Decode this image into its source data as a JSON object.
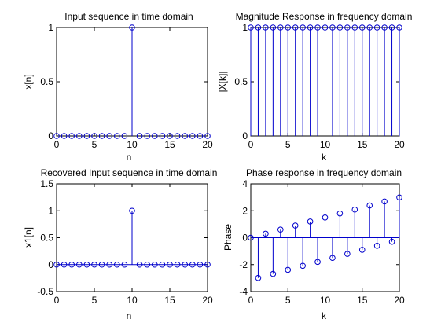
{
  "colors": {
    "stem": "#0000cc",
    "axes": "#000000",
    "background": "#ffffff"
  },
  "chart_data": [
    {
      "type": "stem",
      "title": "Input sequence in time domain",
      "xlabel": "n",
      "ylabel": "x[n]",
      "xlim": [
        0,
        20
      ],
      "ylim": [
        0,
        1
      ],
      "xticks": [
        0,
        5,
        10,
        15,
        20
      ],
      "yticks": [
        0,
        0.5,
        1
      ],
      "grid": false,
      "x": [
        0,
        1,
        2,
        3,
        4,
        5,
        6,
        7,
        8,
        9,
        10,
        11,
        12,
        13,
        14,
        15,
        16,
        17,
        18,
        19,
        20
      ],
      "values": [
        0,
        0,
        0,
        0,
        0,
        0,
        0,
        0,
        0,
        0,
        1,
        0,
        0,
        0,
        0,
        0,
        0,
        0,
        0,
        0,
        0
      ]
    },
    {
      "type": "stem",
      "title": "Magnitude Response in frequency domain",
      "xlabel": "k",
      "ylabel": "|X[k]|",
      "xlim": [
        0,
        20
      ],
      "ylim": [
        0,
        1
      ],
      "xticks": [
        0,
        5,
        10,
        15,
        20
      ],
      "yticks": [
        0,
        0.5,
        1
      ],
      "grid": false,
      "x": [
        0,
        1,
        2,
        3,
        4,
        5,
        6,
        7,
        8,
        9,
        10,
        11,
        12,
        13,
        14,
        15,
        16,
        17,
        18,
        19,
        20
      ],
      "values": [
        1,
        1,
        1,
        1,
        1,
        1,
        1,
        1,
        1,
        1,
        1,
        1,
        1,
        1,
        1,
        1,
        1,
        1,
        1,
        1,
        1
      ]
    },
    {
      "type": "stem",
      "title": "Recovered Input sequence in time domain",
      "xlabel": "n",
      "ylabel": "x1[n]",
      "xlim": [
        0,
        20
      ],
      "ylim": [
        -0.5,
        1.5
      ],
      "xticks": [
        0,
        5,
        10,
        15,
        20
      ],
      "yticks": [
        -0.5,
        0,
        0.5,
        1,
        1.5
      ],
      "grid": false,
      "x": [
        0,
        1,
        2,
        3,
        4,
        5,
        6,
        7,
        8,
        9,
        10,
        11,
        12,
        13,
        14,
        15,
        16,
        17,
        18,
        19,
        20
      ],
      "values": [
        0,
        0,
        0,
        0,
        0,
        0,
        0,
        0,
        0,
        0,
        1,
        0,
        0,
        0,
        0,
        0,
        0,
        0,
        0,
        0,
        0
      ]
    },
    {
      "type": "stem",
      "title": "Phase response in frequency domain",
      "xlabel": "k",
      "ylabel": "Phase",
      "xlim": [
        0,
        20
      ],
      "ylim": [
        -4,
        4
      ],
      "xticks": [
        0,
        5,
        10,
        15,
        20
      ],
      "yticks": [
        -4,
        -2,
        0,
        2,
        4
      ],
      "grid": false,
      "x": [
        0,
        1,
        2,
        3,
        4,
        5,
        6,
        7,
        8,
        9,
        10,
        11,
        12,
        13,
        14,
        15,
        16,
        17,
        18,
        19,
        20
      ],
      "values": [
        0,
        -2.99,
        0.3,
        -2.69,
        0.6,
        -2.39,
        0.9,
        -2.09,
        1.2,
        -1.8,
        1.5,
        -1.5,
        1.8,
        -1.2,
        2.09,
        -0.9,
        2.39,
        -0.6,
        2.69,
        -0.3,
        2.99
      ]
    }
  ]
}
